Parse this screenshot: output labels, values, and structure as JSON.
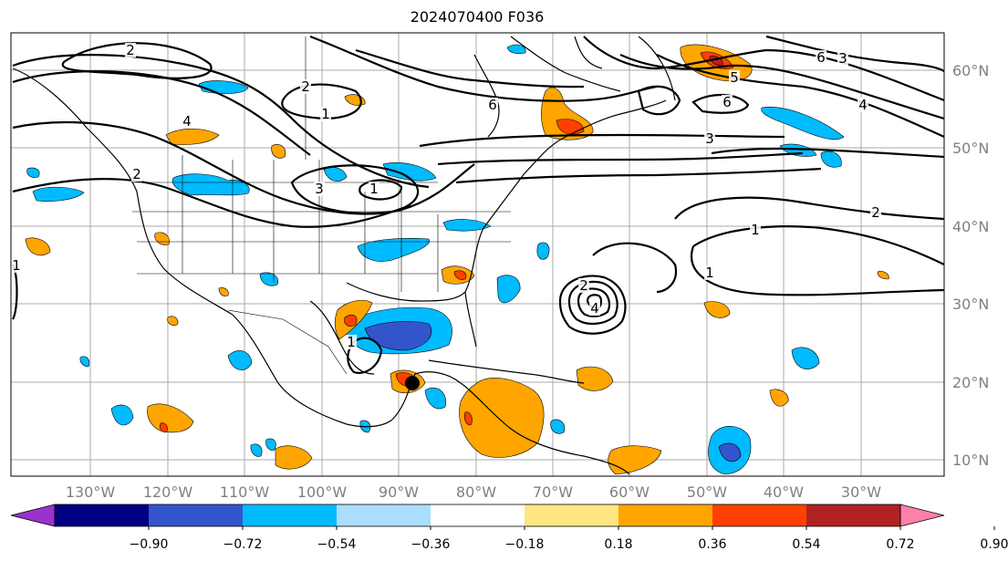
{
  "title": "2024070400 F036",
  "latitudes": [
    {
      "label": "60°N"
    },
    {
      "label": "50°N"
    },
    {
      "label": "40°N"
    },
    {
      "label": "30°N"
    },
    {
      "label": "20°N"
    },
    {
      "label": "10°N"
    }
  ],
  "longitudes": [
    {
      "label": "130°W"
    },
    {
      "label": "120°W"
    },
    {
      "label": "110°W"
    },
    {
      "label": "100°W"
    },
    {
      "label": "90°W"
    },
    {
      "label": "80°W"
    },
    {
      "label": "70°W"
    },
    {
      "label": "60°W"
    },
    {
      "label": "50°W"
    },
    {
      "label": "40°W"
    },
    {
      "label": "30°W"
    }
  ],
  "colorbar": {
    "colors": [
      "#9933cc",
      "#000080",
      "#3355cc",
      "#00bbff",
      "#aaddff",
      "#ffffff",
      "#ffe680",
      "#ffa500",
      "#ff4000",
      "#b22222",
      "#ff80aa"
    ],
    "ticks": [
      "−0.90",
      "−0.72",
      "−0.54",
      "−0.36",
      "−0.18",
      "0.18",
      "0.36",
      "0.54",
      "0.72",
      "0.90"
    ]
  },
  "contour_labels": [
    "2",
    "4",
    "2",
    "1",
    "2",
    "3",
    "6",
    "1",
    "3",
    "6",
    "5",
    "6",
    "4",
    "3",
    "2",
    "1",
    "1",
    "2",
    "4",
    "1",
    "1"
  ]
}
